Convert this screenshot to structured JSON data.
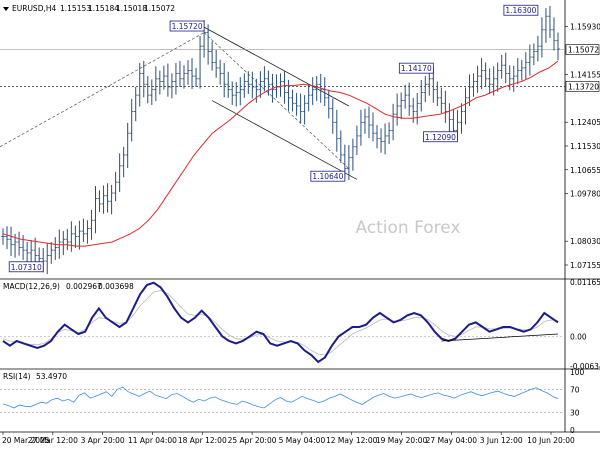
{
  "chart_data": {
    "type": "line",
    "symbol": "EURUSD,H4",
    "ohlc_values": [
      "1.15153",
      "1.15184",
      "1.15018",
      "1.15072"
    ],
    "watermark": "Action Forex",
    "colors": {
      "price": "#2a4f7a",
      "moving_average": "#e0282d",
      "macd": "#1c1c8c",
      "signal": "#b8b8b8",
      "rsi": "#3d8fe0",
      "channel": "#222222",
      "label_border": "#1d1d8a"
    },
    "x_ticks": [
      "20 Mar 2025",
      "27 Mar 12:00",
      "3 Apr 20:00",
      "11 Apr 04:00",
      "18 Apr 12:00",
      "25 Apr 20:00",
      "5 May 04:00",
      "12 May 12:00",
      "19 May 20:00",
      "27 May 04:00",
      "3 Jun 12:00",
      "10 Jun 20:00"
    ],
    "price_panel": {
      "ylim": [
        1.0675,
        1.1675
      ],
      "y_ticks": [
        "1.15930",
        "1.14155",
        "1.12405",
        "1.11530",
        "1.10655",
        "1.09780",
        "1.08030",
        "1.07155"
      ],
      "current_price": "1.15072",
      "reference_level": "1.13720",
      "pivot_labels": [
        "1.15720",
        "1.16300",
        "1.14170",
        "1.12090",
        "1.10640",
        "1.07310"
      ],
      "close_series": [
        1.082,
        1.081,
        1.079,
        1.08,
        1.078,
        1.077,
        1.076,
        1.077,
        1.075,
        1.074,
        1.073,
        1.075,
        1.077,
        1.078,
        1.08,
        1.081,
        1.08,
        1.083,
        1.082,
        1.084,
        1.083,
        1.085,
        1.088,
        1.096,
        1.094,
        1.097,
        1.095,
        1.098,
        1.102,
        1.108,
        1.112,
        1.12,
        1.128,
        1.134,
        1.142,
        1.138,
        1.134,
        1.136,
        1.14,
        1.139,
        1.141,
        1.137,
        1.139,
        1.142,
        1.14,
        1.142,
        1.143,
        1.141,
        1.14,
        1.152,
        1.157,
        1.15,
        1.146,
        1.144,
        1.142,
        1.138,
        1.136,
        1.134,
        1.135,
        1.136,
        1.139,
        1.138,
        1.137,
        1.136,
        1.139,
        1.14,
        1.138,
        1.136,
        1.137,
        1.139,
        1.135,
        1.133,
        1.131,
        1.13,
        1.128,
        1.131,
        1.134,
        1.136,
        1.138,
        1.136,
        1.133,
        1.129,
        1.124,
        1.118,
        1.112,
        1.107,
        1.111,
        1.115,
        1.119,
        1.124,
        1.126,
        1.123,
        1.12,
        1.118,
        1.117,
        1.119,
        1.121,
        1.127,
        1.13,
        1.132,
        1.134,
        1.13,
        1.128,
        1.131,
        1.135,
        1.138,
        1.14,
        1.136,
        1.133,
        1.131,
        1.128,
        1.125,
        1.121,
        1.124,
        1.128,
        1.133,
        1.137,
        1.139,
        1.141,
        1.143,
        1.14,
        1.138,
        1.14,
        1.143,
        1.145,
        1.142,
        1.14,
        1.141,
        1.143,
        1.144,
        1.146,
        1.148,
        1.15,
        1.152,
        1.158,
        1.163,
        1.158,
        1.154,
        1.151
      ],
      "ma_series": [
        1.083,
        1.082,
        1.081,
        1.0805,
        1.08,
        1.0795,
        1.079,
        1.079,
        1.0785,
        1.0785,
        1.079,
        1.0795,
        1.08,
        1.0815,
        1.083,
        1.085,
        1.088,
        1.092,
        1.097,
        1.102,
        1.107,
        1.112,
        1.116,
        1.12,
        1.1225,
        1.125,
        1.128,
        1.131,
        1.1335,
        1.1355,
        1.137,
        1.1375,
        1.1375,
        1.138,
        1.1375,
        1.1365,
        1.1355,
        1.135,
        1.134,
        1.1325,
        1.131,
        1.129,
        1.127,
        1.126,
        1.1255,
        1.1255,
        1.126,
        1.1265,
        1.127,
        1.128,
        1.1295,
        1.131,
        1.133,
        1.134,
        1.1355,
        1.137,
        1.138,
        1.139,
        1.1405,
        1.1425,
        1.144,
        1.1465
      ]
    },
    "macd_panel": {
      "indicator": "MACD(12,26,9)",
      "values": [
        "0.002967",
        "0.003698"
      ],
      "ylim": [
        -0.00635,
        0.01165
      ],
      "y_ticks": [
        "0.011654",
        "0.00",
        "-0.006345"
      ],
      "macd_series": [
        -0.001,
        -0.002,
        -0.001,
        -0.0015,
        -0.002,
        -0.0025,
        -0.002,
        -0.001,
        0.001,
        0.0025,
        0.0015,
        0.0005,
        0.001,
        0.004,
        0.006,
        0.004,
        0.003,
        0.002,
        0.003,
        0.006,
        0.009,
        0.011,
        0.0115,
        0.0105,
        0.0085,
        0.006,
        0.004,
        0.003,
        0.004,
        0.0055,
        0.004,
        0.002,
        0.0,
        -0.001,
        -0.0015,
        -0.001,
        0.0,
        0.001,
        0.0005,
        -0.0015,
        -0.002,
        -0.0015,
        -0.001,
        -0.0015,
        -0.003,
        -0.004,
        -0.0055,
        -0.0045,
        -0.002,
        0.0,
        0.001,
        0.002,
        0.002,
        0.0025,
        0.004,
        0.005,
        0.004,
        0.003,
        0.0035,
        0.0045,
        0.005,
        0.0045,
        0.003,
        0.001,
        -0.0005,
        -0.001,
        -0.0005,
        0.001,
        0.0025,
        0.003,
        0.002,
        0.001,
        0.0015,
        0.002,
        0.002,
        0.0015,
        0.001,
        0.0015,
        0.003,
        0.005,
        0.004,
        0.003
      ],
      "signal_series": [
        -0.0005,
        -0.001,
        -0.0012,
        -0.0015,
        -0.0017,
        -0.0018,
        -0.0015,
        -0.0005,
        0.0008,
        0.0015,
        0.0012,
        0.0008,
        0.0015,
        0.003,
        0.004,
        0.0038,
        0.0032,
        0.0028,
        0.003,
        0.0045,
        0.0065,
        0.008,
        0.0095,
        0.0098,
        0.0092,
        0.0078,
        0.0062,
        0.0048,
        0.0045,
        0.0047,
        0.0042,
        0.003,
        0.0015,
        0.0003,
        -0.0005,
        -0.0006,
        -0.0003,
        0.0003,
        0.0004,
        -0.0003,
        -0.001,
        -0.0012,
        -0.0012,
        -0.0013,
        -0.002,
        -0.003,
        -0.0038,
        -0.004,
        -0.0033,
        -0.002,
        -0.0008,
        0.0005,
        0.0012,
        0.0018,
        0.0026,
        0.0035,
        0.0037,
        0.0033,
        0.0033,
        0.0036,
        0.004,
        0.0041,
        0.0036,
        0.0025,
        0.0012,
        0.0003,
        0.0,
        0.0004,
        0.0013,
        0.002,
        0.002,
        0.0016,
        0.0016,
        0.0017,
        0.0018,
        0.0016,
        0.0014,
        0.0014,
        0.002,
        0.0032,
        0.0035,
        0.0034
      ]
    },
    "rsi_panel": {
      "indicator": "RSI(14)",
      "value": "53.4970",
      "ylim": [
        0,
        100
      ],
      "y_ticks": [
        "100",
        "70",
        "30",
        "0"
      ],
      "rsi_series": [
        45,
        42,
        38,
        43,
        41,
        40,
        44,
        48,
        46,
        52,
        55,
        50,
        53,
        48,
        60,
        64,
        55,
        58,
        62,
        66,
        58,
        70,
        74,
        66,
        62,
        58,
        63,
        67,
        60,
        57,
        54,
        61,
        63,
        58,
        52,
        48,
        53,
        50,
        55,
        57,
        52,
        49,
        46,
        44,
        50,
        47,
        43,
        40,
        38,
        45,
        52,
        56,
        50,
        48,
        53,
        58,
        54,
        51,
        47,
        50,
        55,
        58,
        62,
        57,
        52,
        48,
        44,
        50,
        56,
        60,
        63,
        58,
        55,
        57,
        60,
        62,
        58,
        56,
        59,
        62,
        64,
        60,
        58,
        55,
        60,
        63,
        66,
        62,
        59,
        62,
        65,
        67,
        63,
        60,
        58,
        62,
        66,
        70,
        73,
        68,
        64,
        58,
        54
      ]
    }
  }
}
